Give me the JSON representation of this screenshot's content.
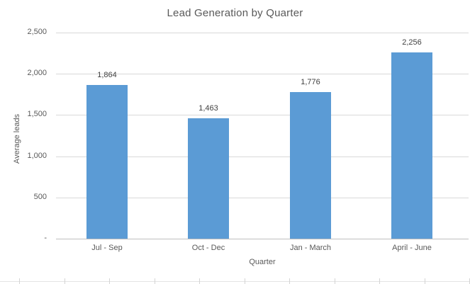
{
  "chart_data": {
    "type": "bar",
    "title": "Lead Generation by Quarter",
    "xlabel": "Quarter",
    "ylabel": "Average leads",
    "categories": [
      "Jul - Sep",
      "Oct - Dec",
      "Jan - March",
      "April - June"
    ],
    "values": [
      1864,
      1463,
      1776,
      2256
    ],
    "value_labels": [
      "1,864",
      "1,463",
      "1,776",
      "2,256"
    ],
    "data_labels_shown": true,
    "ylim": [
      0,
      2500
    ],
    "y_ticks": [
      {
        "label": "2,500",
        "value": 2500
      },
      {
        "label": "2,000",
        "value": 2000
      },
      {
        "label": "1,500",
        "value": 1500
      },
      {
        "label": "1,000",
        "value": 1000
      },
      {
        "label": "500",
        "value": 500
      },
      {
        "label": "-",
        "value": 0
      }
    ],
    "grid": true,
    "legend": "none",
    "colors": {
      "bar": "#5b9bd5",
      "title_text": "#595959",
      "axis_text": "#595959",
      "data_label_text": "#404040",
      "gridline": "#d9d9d9",
      "axis_line": "#bfbfbf",
      "background": "#ffffff",
      "worksheet_gridline": "#d9d9d9"
    }
  }
}
